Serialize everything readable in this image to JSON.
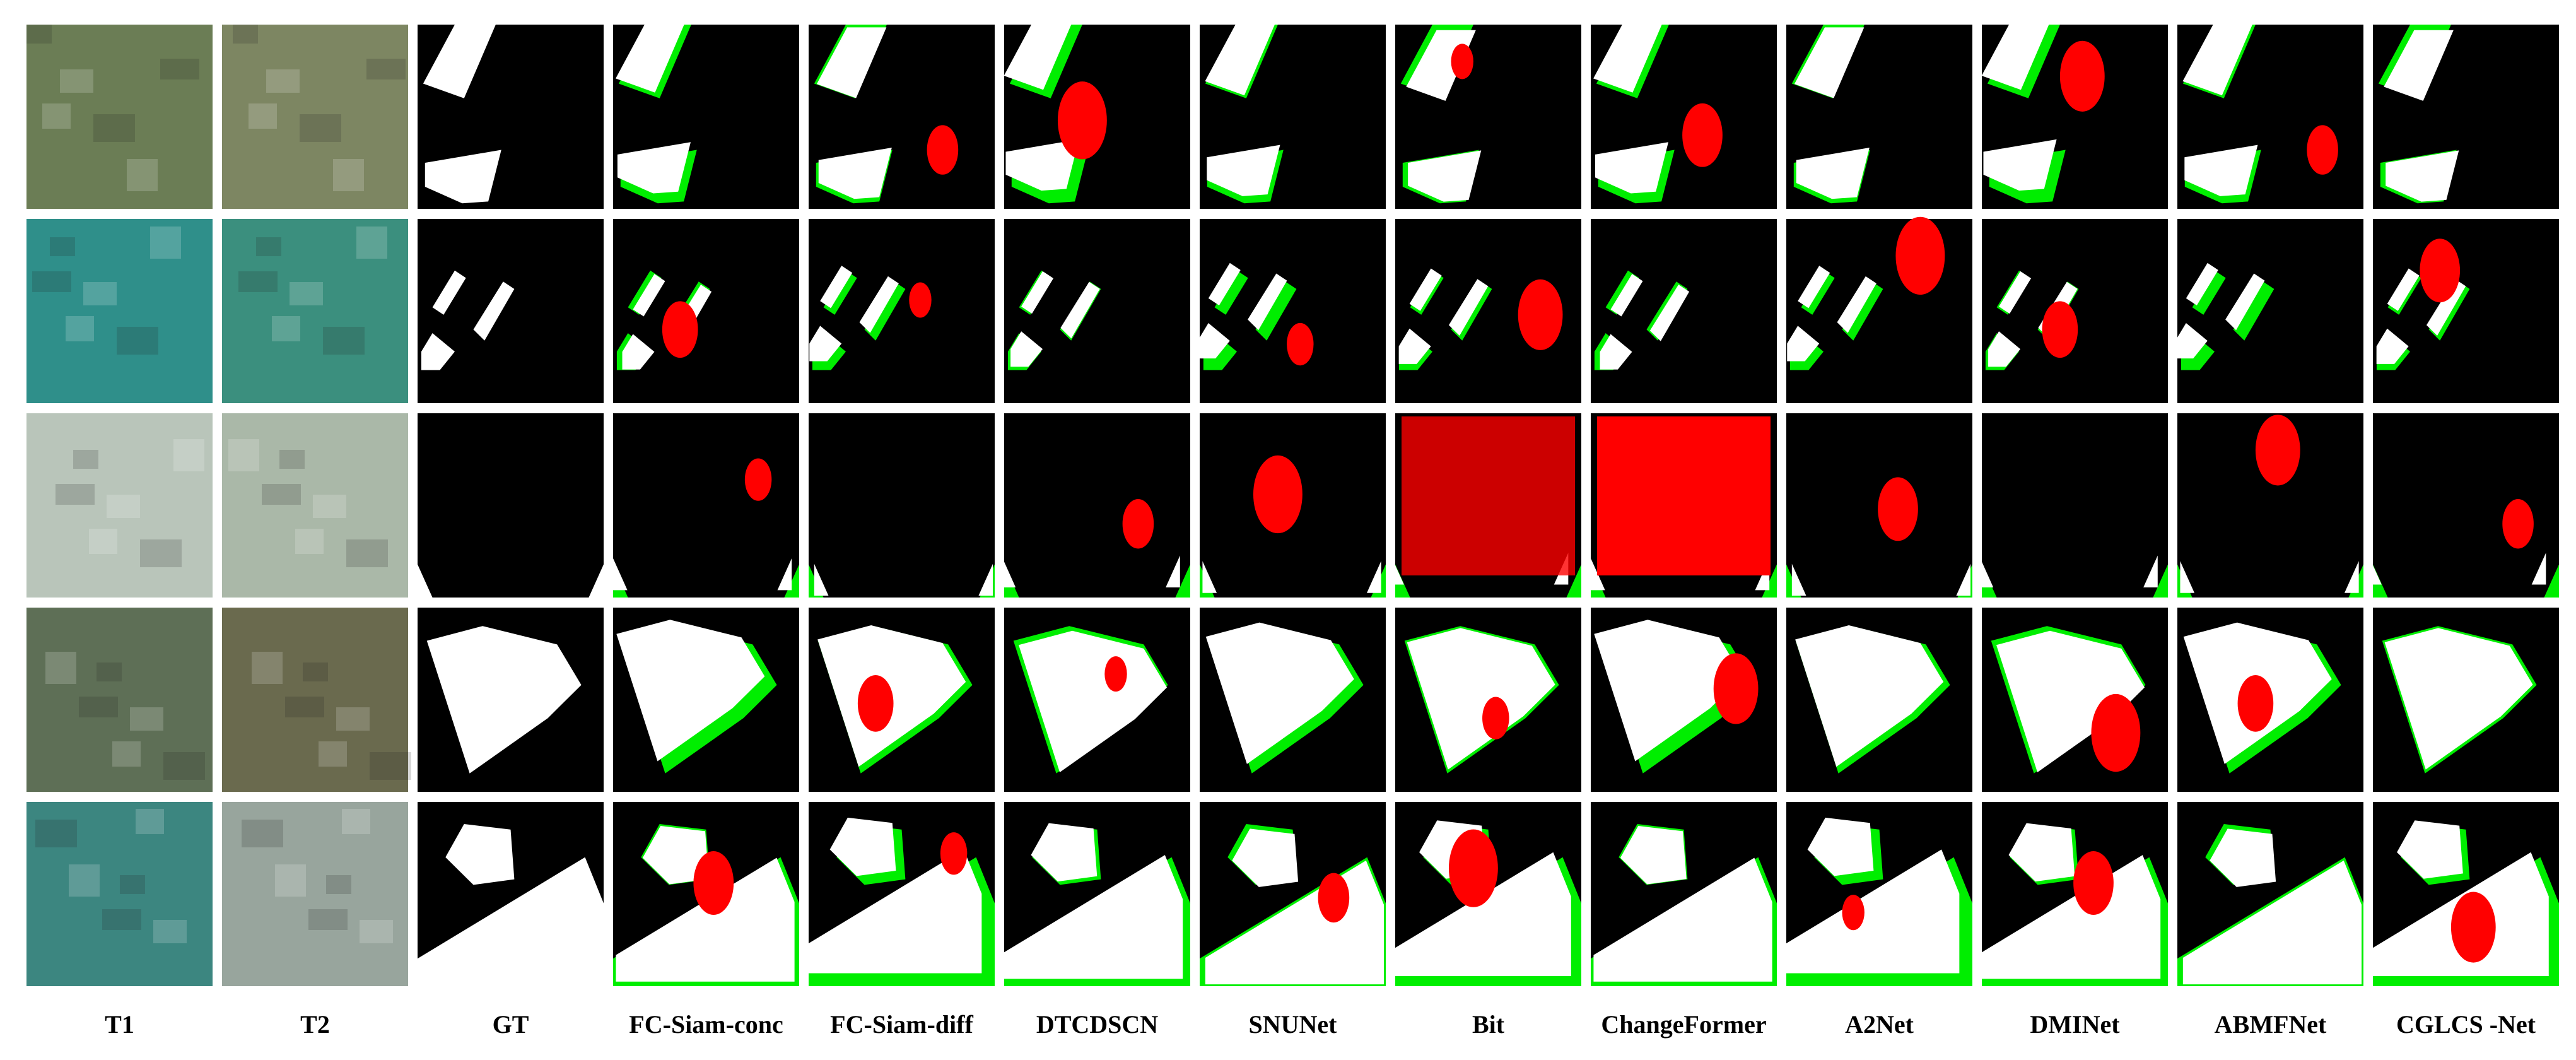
{
  "figure": {
    "columns": [
      "T1",
      "T2",
      "GT",
      "FC-Siam-conc",
      "FC-Siam-diff",
      "DTCDSCN",
      "SNUNet",
      "Bit",
      "ChangeFormer",
      "A2Net",
      "DMINet",
      "ABMFNet",
      "CGLCS -Net"
    ]
  }
}
